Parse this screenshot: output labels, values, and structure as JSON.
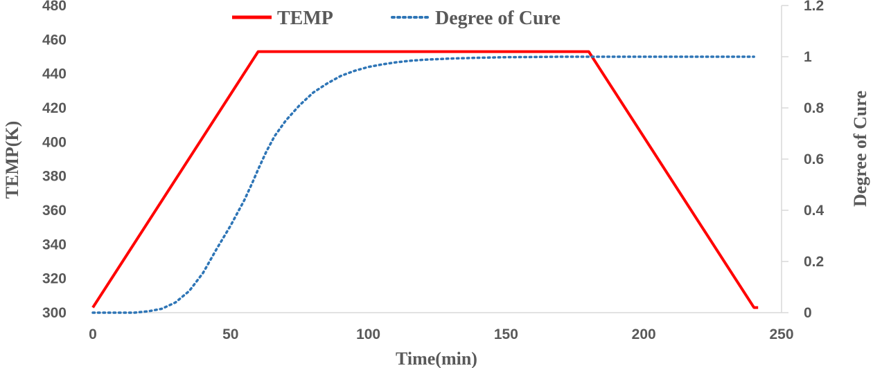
{
  "chart_data": {
    "type": "line",
    "title": "",
    "xlabel": "Time(min)",
    "ylabel": "TEMP(K)",
    "y2label": "Degree of Cure",
    "xlim": [
      0,
      250
    ],
    "ylim": [
      300,
      480
    ],
    "y2lim": [
      0,
      1.2
    ],
    "x_ticks": [
      0,
      50,
      100,
      150,
      200,
      250
    ],
    "y_ticks": [
      300,
      320,
      340,
      360,
      380,
      400,
      420,
      440,
      460,
      480
    ],
    "y2_ticks": [
      "0",
      "0.2",
      "0.4",
      "0.6",
      "0.8",
      "1",
      "1.2"
    ],
    "grid": false,
    "legend_position": "top",
    "colors": {
      "temp": "#ff0000",
      "cure": "#2e75b6",
      "axis": "#d9d9d9",
      "text": "#595959"
    },
    "series": [
      {
        "name": "TEMP",
        "axis": "left",
        "style": "solid",
        "x": [
          0,
          60,
          180,
          240,
          241.5
        ],
        "y": [
          303,
          453,
          453,
          303,
          303
        ]
      },
      {
        "name": "Degree of Cure",
        "axis": "right",
        "style": "dotted",
        "x": [
          0,
          10,
          15,
          20,
          25,
          30,
          35,
          40,
          45,
          50,
          55,
          58,
          60,
          63,
          66,
          70,
          75,
          80,
          85,
          90,
          95,
          100,
          105,
          110,
          115,
          120,
          130,
          140,
          150,
          160,
          170,
          180,
          190,
          200,
          210,
          220,
          230,
          240
        ],
        "y": [
          0,
          0,
          0,
          0.005,
          0.015,
          0.04,
          0.085,
          0.155,
          0.25,
          0.34,
          0.44,
          0.51,
          0.56,
          0.63,
          0.69,
          0.75,
          0.81,
          0.86,
          0.895,
          0.925,
          0.945,
          0.96,
          0.97,
          0.978,
          0.984,
          0.988,
          0.993,
          0.996,
          0.998,
          0.999,
          1.0,
          1.0,
          1.0,
          1.0,
          1.0,
          1.0,
          1.0,
          1.0
        ]
      }
    ]
  }
}
